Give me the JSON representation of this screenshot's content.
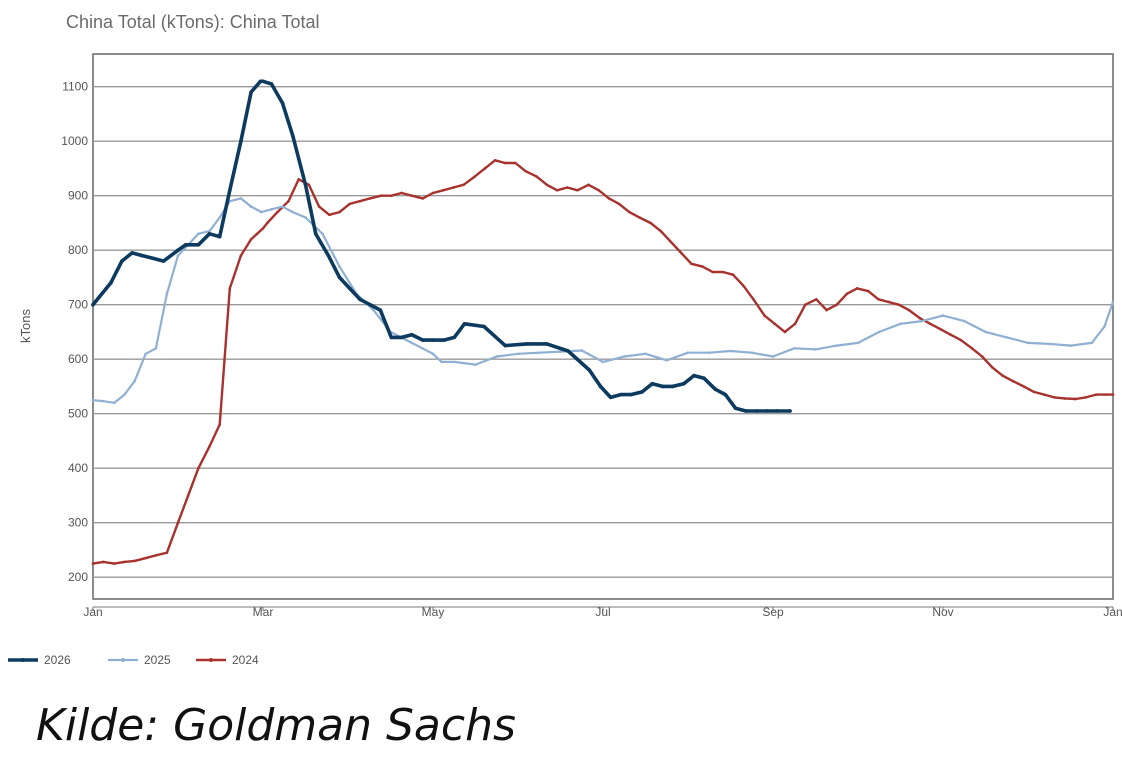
{
  "title": "China Total (kTons): China Total",
  "source": "Kilde: Goldman Sachs",
  "chart_data": {
    "type": "line",
    "title": "China Total (kTons): China Total",
    "ylabel": "kTons",
    "xlabel": "",
    "ylim": [
      160,
      1160
    ],
    "xlim": [
      1,
      13
    ],
    "yticks": [
      200,
      300,
      400,
      500,
      600,
      700,
      800,
      900,
      1000,
      1100
    ],
    "xticks": [
      {
        "x": 1,
        "label": "Jan"
      },
      {
        "x": 3,
        "label": "Mar"
      },
      {
        "x": 5,
        "label": "May"
      },
      {
        "x": 7,
        "label": "Jul"
      },
      {
        "x": 9,
        "label": "Sep"
      },
      {
        "x": 11,
        "label": "Nov"
      },
      {
        "x": 13,
        "label": "Jan"
      }
    ],
    "grid": true,
    "legend_position": "bottom-left",
    "series": [
      {
        "name": "2026",
        "color": "#0d3a5f",
        "x": [
          1.0,
          1.21,
          1.34,
          1.46,
          1.58,
          1.71,
          1.83,
          2.0,
          2.09,
          2.24,
          2.37,
          2.49,
          2.61,
          2.74,
          2.86,
          2.97,
          3.0,
          3.1,
          3.23,
          3.35,
          3.5,
          3.62,
          3.77,
          3.9,
          4.02,
          4.14,
          4.26,
          4.38,
          4.51,
          4.63,
          4.75,
          4.88,
          5.0,
          5.13,
          5.25,
          5.37,
          5.6,
          5.85,
          6.1,
          6.34,
          6.59,
          6.84,
          6.97,
          7.09,
          7.21,
          7.33,
          7.46,
          7.58,
          7.7,
          7.82,
          7.95,
          8.07,
          8.19,
          8.32,
          8.44,
          8.56,
          8.68,
          8.81,
          8.93,
          9.05,
          9.2
        ],
        "y": [
          700,
          740,
          780,
          795,
          790,
          785,
          780,
          800,
          810,
          810,
          830,
          825,
          910,
          1000,
          1090,
          1110,
          1110,
          1105,
          1070,
          1010,
          920,
          830,
          790,
          750,
          730,
          710,
          700,
          690,
          640,
          640,
          645,
          635,
          635,
          635,
          640,
          665,
          660,
          625,
          628,
          628,
          615,
          580,
          550,
          530,
          535,
          535,
          540,
          555,
          550,
          550,
          555,
          570,
          565,
          545,
          535,
          510,
          505,
          505,
          505,
          505,
          505
        ]
      },
      {
        "name": "2025",
        "color": "#8fb0d2",
        "x": [
          1.0,
          1.12,
          1.25,
          1.37,
          1.49,
          1.62,
          1.74,
          1.87,
          2.0,
          2.12,
          2.24,
          2.37,
          2.49,
          2.61,
          2.74,
          2.86,
          2.98,
          3.1,
          3.23,
          3.35,
          3.5,
          3.7,
          3.9,
          4.1,
          4.3,
          4.5,
          4.75,
          5.0,
          5.1,
          5.25,
          5.5,
          5.75,
          6.0,
          6.25,
          6.5,
          6.75,
          7.0,
          7.25,
          7.5,
          7.75,
          8.0,
          8.25,
          8.5,
          8.75,
          9.0,
          9.25,
          9.5,
          9.75,
          10.0,
          10.25,
          10.5,
          10.75,
          11.0,
          11.25,
          11.5,
          11.75,
          12.0,
          12.25,
          12.5,
          12.75,
          12.9,
          13.0
        ],
        "y": [
          525,
          523,
          520,
          535,
          560,
          610,
          620,
          720,
          790,
          810,
          830,
          835,
          860,
          890,
          895,
          880,
          870,
          875,
          880,
          870,
          860,
          830,
          770,
          720,
          690,
          650,
          630,
          610,
          595,
          595,
          590,
          605,
          610,
          612,
          614,
          616,
          595,
          605,
          610,
          598,
          612,
          612,
          615,
          612,
          605,
          620,
          618,
          625,
          630,
          650,
          665,
          670,
          680,
          670,
          650,
          640,
          630,
          628,
          625,
          630,
          660,
          705
        ]
      },
      {
        "name": "2024",
        "color": "#a8322d",
        "x": [
          1.0,
          1.12,
          1.25,
          1.37,
          1.49,
          1.62,
          1.74,
          1.87,
          2.0,
          2.12,
          2.24,
          2.37,
          2.49,
          2.61,
          2.74,
          2.86,
          2.93,
          3.0,
          3.05,
          3.17,
          3.3,
          3.42,
          3.54,
          3.66,
          3.78,
          3.9,
          4.02,
          4.14,
          4.26,
          4.39,
          4.51,
          4.63,
          4.75,
          4.88,
          5.0,
          5.12,
          5.24,
          5.36,
          5.49,
          5.61,
          5.73,
          5.85,
          5.97,
          6.09,
          6.22,
          6.34,
          6.46,
          6.58,
          6.7,
          6.83,
          6.95,
          7.07,
          7.19,
          7.31,
          7.43,
          7.56,
          7.68,
          7.8,
          7.92,
          8.04,
          8.17,
          8.29,
          8.41,
          8.53,
          8.65,
          8.77,
          8.9,
          9.02,
          9.14,
          9.26,
          9.38,
          9.51,
          9.63,
          9.75,
          9.87,
          9.99,
          10.12,
          10.24,
          10.36,
          10.48,
          10.6,
          10.73,
          10.85,
          10.97,
          11.09,
          11.21,
          11.34,
          11.46,
          11.58,
          11.7,
          11.82,
          11.95,
          12.07,
          12.19,
          12.31,
          12.43,
          12.56,
          12.68,
          12.8,
          12.92,
          13.0
        ],
        "y": [
          225,
          228,
          225,
          228,
          230,
          235,
          240,
          245,
          300,
          350,
          400,
          440,
          480,
          730,
          790,
          820,
          830,
          840,
          850,
          870,
          890,
          930,
          920,
          880,
          865,
          870,
          885,
          890,
          895,
          900,
          900,
          905,
          900,
          895,
          905,
          910,
          915,
          920,
          935,
          950,
          965,
          960,
          960,
          945,
          935,
          920,
          910,
          915,
          910,
          920,
          910,
          895,
          885,
          870,
          860,
          850,
          835,
          815,
          795,
          775,
          770,
          760,
          760,
          755,
          735,
          710,
          680,
          665,
          650,
          665,
          700,
          710,
          690,
          700,
          720,
          730,
          725,
          710,
          705,
          700,
          690,
          675,
          665,
          655,
          645,
          635,
          620,
          605,
          585,
          570,
          560,
          550,
          540,
          535,
          530,
          528,
          527,
          530,
          535,
          535,
          535
        ]
      }
    ]
  }
}
